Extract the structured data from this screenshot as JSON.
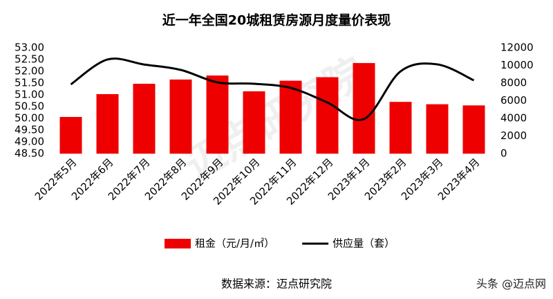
{
  "chart_data": {
    "type": "bar",
    "title": "近一年全国20城租赁房源月度量价表现",
    "categories": [
      "2022年5月",
      "2022年6月",
      "2022年7月",
      "2022年8月",
      "2022年9月",
      "2022年10月",
      "2022年11月",
      "2022年12月",
      "2023年1月",
      "2023年2月",
      "2023年3月",
      "2023年4月"
    ],
    "series": [
      {
        "name": "租金（元/月/㎡）",
        "type": "bar",
        "color": "#ee0000",
        "values": [
          50.06,
          51.03,
          51.47,
          51.65,
          51.82,
          51.15,
          51.6,
          51.75,
          52.35,
          50.7,
          50.6,
          50.55
        ]
      },
      {
        "name": "供应量（套）",
        "type": "line",
        "axis": "y2",
        "color": "#000000",
        "values": [
          7850,
          10670,
          10100,
          9490,
          8080,
          7920,
          7450,
          5800,
          3920,
          9330,
          10120,
          8310
        ]
      }
    ],
    "ylim": [
      48.5,
      53
    ],
    "yticks": [
      {
        "value": 48.5,
        "label": "48.50"
      },
      {
        "value": 49,
        "label": "49.00"
      },
      {
        "value": 49.5,
        "label": "49.50"
      },
      {
        "value": 50,
        "label": "50.00"
      },
      {
        "value": 50.5,
        "label": "50.50"
      },
      {
        "value": 51,
        "label": "51.00"
      },
      {
        "value": 51.5,
        "label": "51.50"
      },
      {
        "value": 52,
        "label": "52.00"
      },
      {
        "value": 52.5,
        "label": "52.50"
      },
      {
        "value": 53,
        "label": "53.00"
      }
    ],
    "y2lim": [
      0,
      12000
    ],
    "y2ticks": [
      0,
      2000,
      4000,
      6000,
      8000,
      10000,
      12000
    ],
    "legend": "bottom",
    "source": "数据来源：迈点研究院",
    "watermark": "迈点研究院",
    "credit": "头条 @迈点网"
  }
}
